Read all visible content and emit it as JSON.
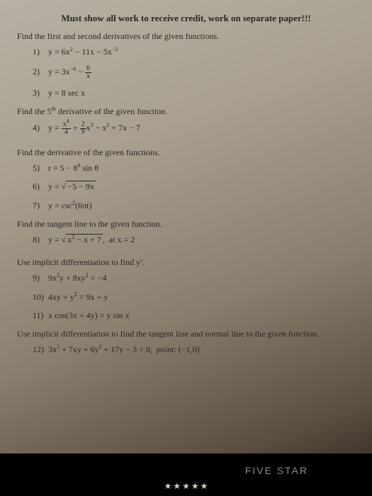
{
  "header": "Must show all work to receive credit, work on separate paper!!!",
  "sections": {
    "s1": {
      "instruction": "Find the first and second derivatives of the given functions.",
      "problems": {
        "p1": {
          "num": "1)",
          "expr_html": "y = 6x<sup>2</sup> − 11x − 5x<sup>−2</sup>"
        },
        "p2": {
          "num": "2)",
          "expr_html": "y = 3x<sup>−6</sup> − <span class='frac'><span class='top'>6</span><span class='bot'>x</span></span>"
        },
        "p3": {
          "num": "3)",
          "expr_html": "y = 8 sec x"
        }
      }
    },
    "s2": {
      "instruction": "Find the 5<sup>th</sup> derivative of the given function.",
      "problems": {
        "p4": {
          "num": "4)",
          "expr_html": "y = <span class='frac'><span class='top'>x<sup>4</sup></span><span class='bot'>4</span></span> + <span class='frac'><span class='top'>2</span><span class='bot'>9</span></span>x<sup>3</sup> − x<sup>2</sup> + 7x − 7"
        }
      }
    },
    "s3": {
      "instruction": "Find the derivative of the given functions.",
      "problems": {
        "p5": {
          "num": "5)",
          "expr_html": "r = 5 − θ<sup>4</sup> sin θ"
        },
        "p6": {
          "num": "6)",
          "expr_html": "y = <span class='sqrt-sign'></span><span class='sqrt'>−5 − 9x</span>"
        },
        "p7": {
          "num": "7)",
          "expr_html": "y = csc<sup>2</sup>(6πt)"
        }
      }
    },
    "s4": {
      "instruction": "Find the tangent line to the given function.",
      "problems": {
        "p8": {
          "num": "8)",
          "expr_html": "y = <span class='sqrt-sign'></span><span class='sqrt'>x<sup>2</sup> − x + 7</span>,&nbsp;&nbsp;at x = 2"
        }
      }
    },
    "s5": {
      "instruction": "Use implicit differentiation to find y'.",
      "problems": {
        "p9": {
          "num": "9)",
          "expr_html": "9x<sup>2</sup>y + 8xy<sup>2</sup> = −4"
        },
        "p10": {
          "num": "10)",
          "expr_html": "4xy + y<sup>2</sup> = 9x + y"
        },
        "p11": {
          "num": "11)",
          "expr_html": "x cos(3x + 4y) = y sin x"
        }
      }
    },
    "s6": {
      "instruction": "Use implicit differentiation to find the tangent line and normal line to the given function.",
      "problems": {
        "p12": {
          "num": "12)",
          "expr_html": "3x<sup>2</sup> + 7xy + 6y<sup>2</sup> + 17y − 3 = 0,&nbsp;&nbsp;<i>point</i>: (−1,0)"
        }
      }
    }
  },
  "brand": "FIVE STAR",
  "stars": [
    "★",
    "★",
    "★",
    "★",
    "★"
  ]
}
